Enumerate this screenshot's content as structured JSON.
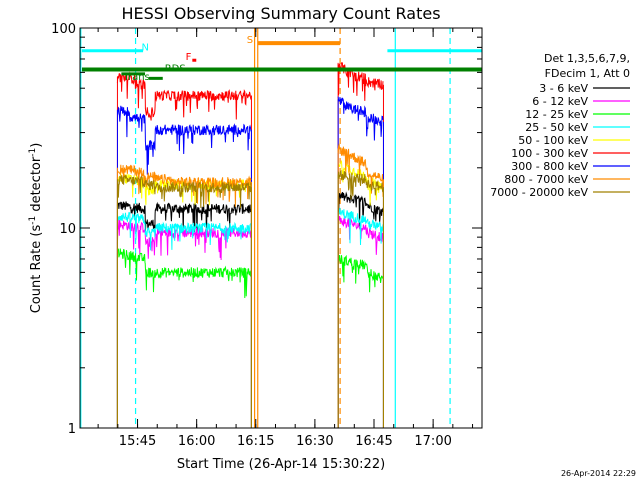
{
  "chart_data": {
    "type": "line",
    "title": "HESSI Observing Summary Count Rates",
    "xlabel": "Start Time (26-Apr-14 15:30:22)",
    "ylabel": "Count Rate (s⁻¹ detector⁻¹)",
    "ylabel_parts": {
      "main": "Count Rate (s",
      "exp1": "-1",
      "mid": " detector",
      "exp2": "-1",
      "end": ")"
    },
    "yscale": "log",
    "ylim": [
      1,
      100
    ],
    "xlim_minutes": [
      0,
      102
    ],
    "x_ticks": [
      {
        "minute": 14.6,
        "label": "15:45"
      },
      {
        "minute": 29.6,
        "label": "16:00"
      },
      {
        "minute": 44.6,
        "label": "16:15"
      },
      {
        "minute": 59.6,
        "label": "16:30"
      },
      {
        "minute": 74.6,
        "label": "16:45"
      },
      {
        "minute": 89.6,
        "label": "17:00"
      }
    ],
    "y_ticks": [
      {
        "value": 1,
        "label": "1"
      },
      {
        "value": 10,
        "label": "10"
      },
      {
        "value": 100,
        "label": "100"
      }
    ],
    "legend": {
      "position": "right",
      "header": [
        "Det 1,3,5,6,7,9,",
        "FDecim 1, Att 0"
      ]
    },
    "series": [
      {
        "name": "3 - 6 keV",
        "color": "#000000",
        "segments": [
          {
            "t": [
              9.5,
              16.5,
              16.6,
              19.0,
              19.1,
              43.5
            ],
            "v": [
              13.0,
              12.5,
              10.5,
              10.5,
              12.5,
              12.5
            ]
          },
          {
            "t": [
              65.5,
              72.5,
              73.0,
              77.0
            ],
            "v": [
              14.5,
              13.5,
              13.0,
              12.0
            ]
          }
        ]
      },
      {
        "name": "6 - 12 keV",
        "color": "#ff00ff",
        "segments": [
          {
            "t": [
              9.5,
              16.5,
              16.6,
              19.0,
              19.1,
              43.5
            ],
            "v": [
              10.5,
              10.0,
              8.5,
              8.5,
              9.5,
              9.5
            ]
          },
          {
            "t": [
              65.5,
              72.5,
              73.0,
              77.0
            ],
            "v": [
              11.0,
              10.0,
              9.5,
              9.0
            ]
          }
        ]
      },
      {
        "name": "12 - 25 keV",
        "color": "#00ff00",
        "segments": [
          {
            "t": [
              9.5,
              16.5,
              16.6,
              19.0,
              19.1,
              43.5
            ],
            "v": [
              7.5,
              7.0,
              6.0,
              6.0,
              6.0,
              6.0
            ]
          },
          {
            "t": [
              65.5,
              72.5,
              73.0,
              77.0
            ],
            "v": [
              7.0,
              6.5,
              6.0,
              5.5
            ]
          }
        ]
      },
      {
        "name": "25 - 50 keV",
        "color": "#00ffff",
        "segments": [
          {
            "t": [
              9.5,
              16.5,
              16.6,
              19.0,
              19.1,
              43.5
            ],
            "v": [
              11.5,
              11.0,
              9.5,
              9.5,
              10.0,
              10.0
            ]
          },
          {
            "t": [
              65.5,
              72.5,
              73.0,
              77.0
            ],
            "v": [
              12.0,
              11.0,
              10.5,
              10.0
            ]
          }
        ]
      },
      {
        "name": "50 - 100 keV",
        "color": "#ffff00",
        "segments": [
          {
            "t": [
              9.5,
              16.5,
              16.6,
              19.0,
              19.1,
              43.5
            ],
            "v": [
              18.0,
              17.0,
              15.5,
              15.5,
              16.5,
              16.5
            ]
          },
          {
            "t": [
              65.5,
              72.5,
              73.0,
              77.0
            ],
            "v": [
              21.0,
              18.0,
              17.0,
              16.0
            ]
          }
        ]
      },
      {
        "name": "100 - 300 keV",
        "color": "#ff0000",
        "segments": [
          {
            "t": [
              9.5,
              14.0,
              14.1,
              16.5,
              16.6,
              19.0,
              19.1,
              43.5
            ],
            "v": [
              57.0,
              56.0,
              53.0,
              52.0,
              38.0,
              38.0,
              46.0,
              46.0
            ]
          },
          {
            "t": [
              65.5,
              68.0,
              72.5,
              73.0,
              77.0
            ],
            "v": [
              66.0,
              60.0,
              56.0,
              54.0,
              52.0
            ]
          }
        ]
      },
      {
        "name": "300 - 800 keV",
        "color": "#0000ff",
        "segments": [
          {
            "t": [
              9.5,
              12.5,
              12.6,
              16.5,
              16.6,
              19.0,
              19.1,
              43.5
            ],
            "v": [
              39.0,
              38.0,
              36.0,
              35.0,
              26.0,
              26.0,
              31.0,
              31.0
            ]
          },
          {
            "t": [
              65.5,
              68.0,
              72.5,
              73.0,
              77.0
            ],
            "v": [
              44.0,
              40.0,
              38.0,
              36.0,
              34.0
            ]
          }
        ]
      },
      {
        "name": "800 - 7000 keV",
        "color": "#ff8c00",
        "segments": [
          {
            "t": [
              9.5,
              16.5,
              16.6,
              19.0,
              19.1,
              23.0,
              23.1,
              43.5
            ],
            "v": [
              20.0,
              19.0,
              18.0,
              18.0,
              17.5,
              17.5,
              17.0,
              17.0
            ]
          },
          {
            "t": [
              65.5,
              72.5,
              73.0,
              77.0
            ],
            "v": [
              25.0,
              21.0,
              19.0,
              17.5
            ]
          }
        ]
      },
      {
        "name": "7000 - 20000 keV",
        "color": "#a08000",
        "segments": [
          {
            "t": [
              9.5,
              16.5,
              16.6,
              19.0,
              19.1,
              43.5
            ],
            "v": [
              17.5,
              17.0,
              16.5,
              16.5,
              16.0,
              16.0
            ]
          },
          {
            "t": [
              65.5,
              72.5,
              73.0,
              77.0
            ],
            "v": [
              18.5,
              17.5,
              16.5,
              16.0
            ]
          }
        ]
      }
    ],
    "vertical_lines": [
      {
        "minute": 0.2,
        "color": "#00ffff",
        "style": "solid"
      },
      {
        "minute": 14.1,
        "color": "#00ffff",
        "style": "dashed"
      },
      {
        "minute": 44.3,
        "color": "#ff8c00",
        "style": "solid"
      },
      {
        "minute": 45.1,
        "color": "#ff8c00",
        "style": "solid"
      },
      {
        "minute": 66.0,
        "color": "#ff8c00",
        "style": "dashed"
      },
      {
        "minute": 80.0,
        "color": "#00ffff",
        "style": "solid"
      },
      {
        "minute": 93.9,
        "color": "#00ffff",
        "style": "dashed"
      }
    ],
    "flag_bars": [
      {
        "t0": 0.5,
        "t1": 102,
        "value": 62,
        "color": "#008000",
        "width": 4
      },
      {
        "t0": 0.5,
        "t1": 16.0,
        "value": 77,
        "color": "#00ffff",
        "width": 3
      },
      {
        "t0": 78.0,
        "t1": 102,
        "value": 77,
        "color": "#00ffff",
        "width": 3
      },
      {
        "t0": 45.1,
        "t1": 66.0,
        "value": 84,
        "color": "#ff8c00",
        "width": 4
      },
      {
        "t0": 17.5,
        "t1": 21.0,
        "value": 56,
        "color": "#008000",
        "width": 3
      },
      {
        "t0": 10.5,
        "t1": 16.5,
        "value": 59,
        "color": "#008000",
        "width": 3
      },
      {
        "t0": 28.5,
        "t1": 29.5,
        "value": 69,
        "color": "#ff0000",
        "width": 3
      }
    ],
    "flag_labels": [
      {
        "text": "N",
        "minute": 15.6,
        "value": 77,
        "color": "#00ffff"
      },
      {
        "text": "S",
        "minute": 42.3,
        "value": 84,
        "color": "#ff8c00"
      },
      {
        "text": "F",
        "minute": 26.8,
        "value": 69,
        "color": "#ff0000"
      },
      {
        "text": "RDS",
        "minute": 21.5,
        "value": 60.5,
        "color": "#008000"
      },
      {
        "text": "Trans",
        "minute": 11.0,
        "value": 55,
        "color": "#008000"
      }
    ],
    "timestamp": "26-Apr-2014 22:29"
  }
}
